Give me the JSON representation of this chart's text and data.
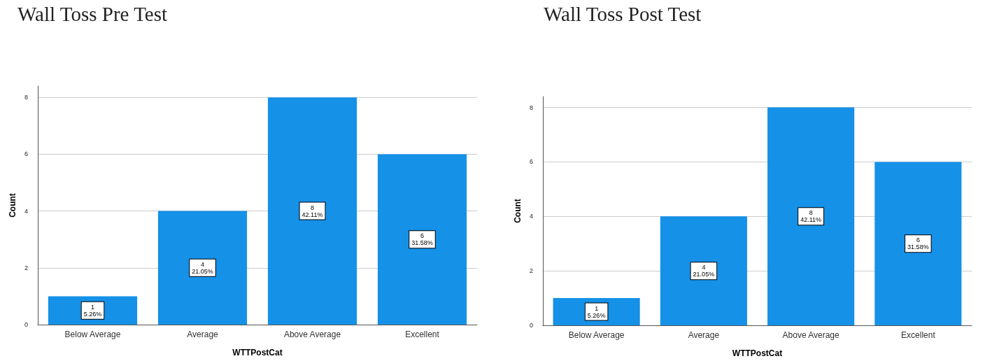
{
  "chart_data": [
    {
      "type": "bar",
      "title": "Wall Toss Pre Test",
      "xlabel": "WTTPostCat",
      "ylabel": "Count",
      "categories": [
        "Below Average",
        "Average",
        "Above Average",
        "Excellent"
      ],
      "values": [
        1,
        4,
        8,
        6
      ],
      "value_labels": [
        "1\n5.26%",
        "4\n21.05%",
        "8\n42.11%",
        "6\n31.58%"
      ],
      "color": "#1591e8",
      "ylim": [
        0,
        8.4
      ],
      "yticks": [
        0,
        2,
        4,
        6,
        8
      ],
      "grid": "y"
    },
    {
      "type": "bar",
      "title": "Wall Toss Post Test",
      "xlabel": "WTTPostCat",
      "ylabel": "Count",
      "categories": [
        "Below Average",
        "Average",
        "Above Average",
        "Excellent"
      ],
      "values": [
        1,
        4,
        8,
        6
      ],
      "value_labels": [
        "1\n5.26%",
        "4\n21.05%",
        "8\n42.11%",
        "6\n31.58%"
      ],
      "color": "#1591e8",
      "ylim": [
        0,
        8.4
      ],
      "yticks": [
        0,
        2,
        4,
        6,
        8
      ],
      "grid": "y"
    }
  ]
}
